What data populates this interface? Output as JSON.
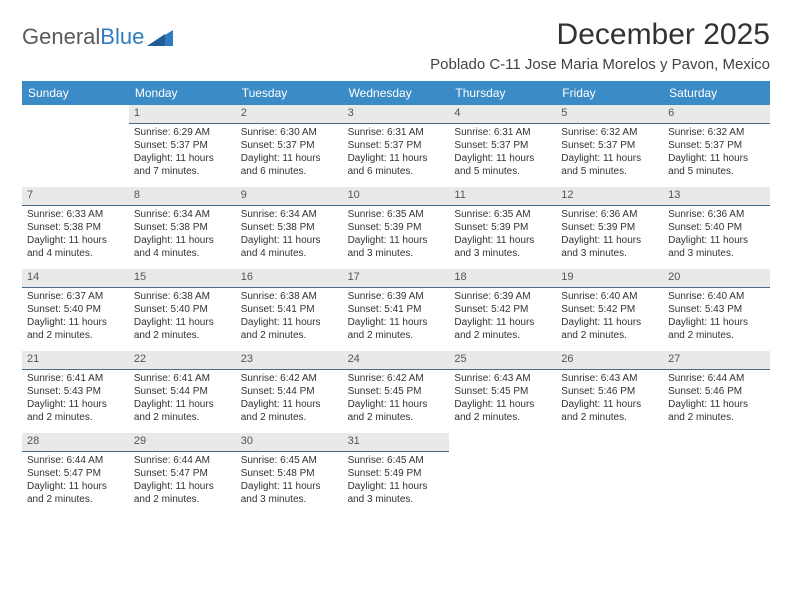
{
  "brand": {
    "word1": "General",
    "word2": "Blue"
  },
  "title": "December 2025",
  "location": "Poblado C-11 Jose Maria Morelos y Pavon, Mexico",
  "colors": {
    "header_bg": "#3b8bc6",
    "header_text": "#ffffff",
    "daynum_bg": "#e9e9e9",
    "daynum_border": "#4a6b8a",
    "body_text": "#333333",
    "brand_gray": "#5a5a5a",
    "brand_blue": "#2f7bbf"
  },
  "typography": {
    "title_fontsize": 30,
    "location_fontsize": 15,
    "dow_fontsize": 12,
    "cell_fontsize": 10
  },
  "days_of_week": [
    "Sunday",
    "Monday",
    "Tuesday",
    "Wednesday",
    "Thursday",
    "Friday",
    "Saturday"
  ],
  "grid": {
    "first_weekday_offset": 1,
    "days_in_month": 31
  },
  "days": {
    "1": {
      "sunrise": "Sunrise: 6:29 AM",
      "sunset": "Sunset: 5:37 PM",
      "daylight1": "Daylight: 11 hours",
      "daylight2": "and 7 minutes."
    },
    "2": {
      "sunrise": "Sunrise: 6:30 AM",
      "sunset": "Sunset: 5:37 PM",
      "daylight1": "Daylight: 11 hours",
      "daylight2": "and 6 minutes."
    },
    "3": {
      "sunrise": "Sunrise: 6:31 AM",
      "sunset": "Sunset: 5:37 PM",
      "daylight1": "Daylight: 11 hours",
      "daylight2": "and 6 minutes."
    },
    "4": {
      "sunrise": "Sunrise: 6:31 AM",
      "sunset": "Sunset: 5:37 PM",
      "daylight1": "Daylight: 11 hours",
      "daylight2": "and 5 minutes."
    },
    "5": {
      "sunrise": "Sunrise: 6:32 AM",
      "sunset": "Sunset: 5:37 PM",
      "daylight1": "Daylight: 11 hours",
      "daylight2": "and 5 minutes."
    },
    "6": {
      "sunrise": "Sunrise: 6:32 AM",
      "sunset": "Sunset: 5:37 PM",
      "daylight1": "Daylight: 11 hours",
      "daylight2": "and 5 minutes."
    },
    "7": {
      "sunrise": "Sunrise: 6:33 AM",
      "sunset": "Sunset: 5:38 PM",
      "daylight1": "Daylight: 11 hours",
      "daylight2": "and 4 minutes."
    },
    "8": {
      "sunrise": "Sunrise: 6:34 AM",
      "sunset": "Sunset: 5:38 PM",
      "daylight1": "Daylight: 11 hours",
      "daylight2": "and 4 minutes."
    },
    "9": {
      "sunrise": "Sunrise: 6:34 AM",
      "sunset": "Sunset: 5:38 PM",
      "daylight1": "Daylight: 11 hours",
      "daylight2": "and 4 minutes."
    },
    "10": {
      "sunrise": "Sunrise: 6:35 AM",
      "sunset": "Sunset: 5:39 PM",
      "daylight1": "Daylight: 11 hours",
      "daylight2": "and 3 minutes."
    },
    "11": {
      "sunrise": "Sunrise: 6:35 AM",
      "sunset": "Sunset: 5:39 PM",
      "daylight1": "Daylight: 11 hours",
      "daylight2": "and 3 minutes."
    },
    "12": {
      "sunrise": "Sunrise: 6:36 AM",
      "sunset": "Sunset: 5:39 PM",
      "daylight1": "Daylight: 11 hours",
      "daylight2": "and 3 minutes."
    },
    "13": {
      "sunrise": "Sunrise: 6:36 AM",
      "sunset": "Sunset: 5:40 PM",
      "daylight1": "Daylight: 11 hours",
      "daylight2": "and 3 minutes."
    },
    "14": {
      "sunrise": "Sunrise: 6:37 AM",
      "sunset": "Sunset: 5:40 PM",
      "daylight1": "Daylight: 11 hours",
      "daylight2": "and 2 minutes."
    },
    "15": {
      "sunrise": "Sunrise: 6:38 AM",
      "sunset": "Sunset: 5:40 PM",
      "daylight1": "Daylight: 11 hours",
      "daylight2": "and 2 minutes."
    },
    "16": {
      "sunrise": "Sunrise: 6:38 AM",
      "sunset": "Sunset: 5:41 PM",
      "daylight1": "Daylight: 11 hours",
      "daylight2": "and 2 minutes."
    },
    "17": {
      "sunrise": "Sunrise: 6:39 AM",
      "sunset": "Sunset: 5:41 PM",
      "daylight1": "Daylight: 11 hours",
      "daylight2": "and 2 minutes."
    },
    "18": {
      "sunrise": "Sunrise: 6:39 AM",
      "sunset": "Sunset: 5:42 PM",
      "daylight1": "Daylight: 11 hours",
      "daylight2": "and 2 minutes."
    },
    "19": {
      "sunrise": "Sunrise: 6:40 AM",
      "sunset": "Sunset: 5:42 PM",
      "daylight1": "Daylight: 11 hours",
      "daylight2": "and 2 minutes."
    },
    "20": {
      "sunrise": "Sunrise: 6:40 AM",
      "sunset": "Sunset: 5:43 PM",
      "daylight1": "Daylight: 11 hours",
      "daylight2": "and 2 minutes."
    },
    "21": {
      "sunrise": "Sunrise: 6:41 AM",
      "sunset": "Sunset: 5:43 PM",
      "daylight1": "Daylight: 11 hours",
      "daylight2": "and 2 minutes."
    },
    "22": {
      "sunrise": "Sunrise: 6:41 AM",
      "sunset": "Sunset: 5:44 PM",
      "daylight1": "Daylight: 11 hours",
      "daylight2": "and 2 minutes."
    },
    "23": {
      "sunrise": "Sunrise: 6:42 AM",
      "sunset": "Sunset: 5:44 PM",
      "daylight1": "Daylight: 11 hours",
      "daylight2": "and 2 minutes."
    },
    "24": {
      "sunrise": "Sunrise: 6:42 AM",
      "sunset": "Sunset: 5:45 PM",
      "daylight1": "Daylight: 11 hours",
      "daylight2": "and 2 minutes."
    },
    "25": {
      "sunrise": "Sunrise: 6:43 AM",
      "sunset": "Sunset: 5:45 PM",
      "daylight1": "Daylight: 11 hours",
      "daylight2": "and 2 minutes."
    },
    "26": {
      "sunrise": "Sunrise: 6:43 AM",
      "sunset": "Sunset: 5:46 PM",
      "daylight1": "Daylight: 11 hours",
      "daylight2": "and 2 minutes."
    },
    "27": {
      "sunrise": "Sunrise: 6:44 AM",
      "sunset": "Sunset: 5:46 PM",
      "daylight1": "Daylight: 11 hours",
      "daylight2": "and 2 minutes."
    },
    "28": {
      "sunrise": "Sunrise: 6:44 AM",
      "sunset": "Sunset: 5:47 PM",
      "daylight1": "Daylight: 11 hours",
      "daylight2": "and 2 minutes."
    },
    "29": {
      "sunrise": "Sunrise: 6:44 AM",
      "sunset": "Sunset: 5:47 PM",
      "daylight1": "Daylight: 11 hours",
      "daylight2": "and 2 minutes."
    },
    "30": {
      "sunrise": "Sunrise: 6:45 AM",
      "sunset": "Sunset: 5:48 PM",
      "daylight1": "Daylight: 11 hours",
      "daylight2": "and 3 minutes."
    },
    "31": {
      "sunrise": "Sunrise: 6:45 AM",
      "sunset": "Sunset: 5:49 PM",
      "daylight1": "Daylight: 11 hours",
      "daylight2": "and 3 minutes."
    }
  }
}
